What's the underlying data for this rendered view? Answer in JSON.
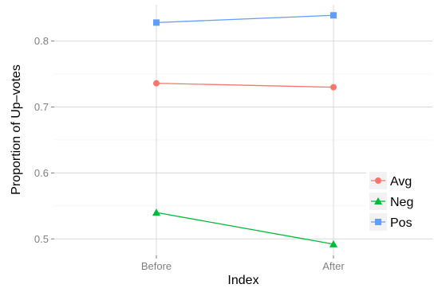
{
  "chart_data": {
    "type": "line",
    "x": [
      "Before",
      "After"
    ],
    "xlabel": "Index",
    "ylabel": "Proportion of Up–votes",
    "ylim": [
      0.475,
      0.855
    ],
    "yticks": [
      0.5,
      0.6,
      0.7,
      0.8
    ],
    "ytick_labels": [
      "0.5",
      "0.6",
      "0.7",
      "0.8"
    ],
    "grid": true,
    "legend_position": "right",
    "series": [
      {
        "name": "Avg",
        "values": [
          0.736,
          0.73
        ],
        "color": "#f8766d",
        "marker": "circle"
      },
      {
        "name": "Neg",
        "values": [
          0.54,
          0.492
        ],
        "color": "#00ba38",
        "marker": "triangle"
      },
      {
        "name": "Pos",
        "values": [
          0.828,
          0.839
        ],
        "color": "#619cff",
        "marker": "square"
      }
    ]
  }
}
